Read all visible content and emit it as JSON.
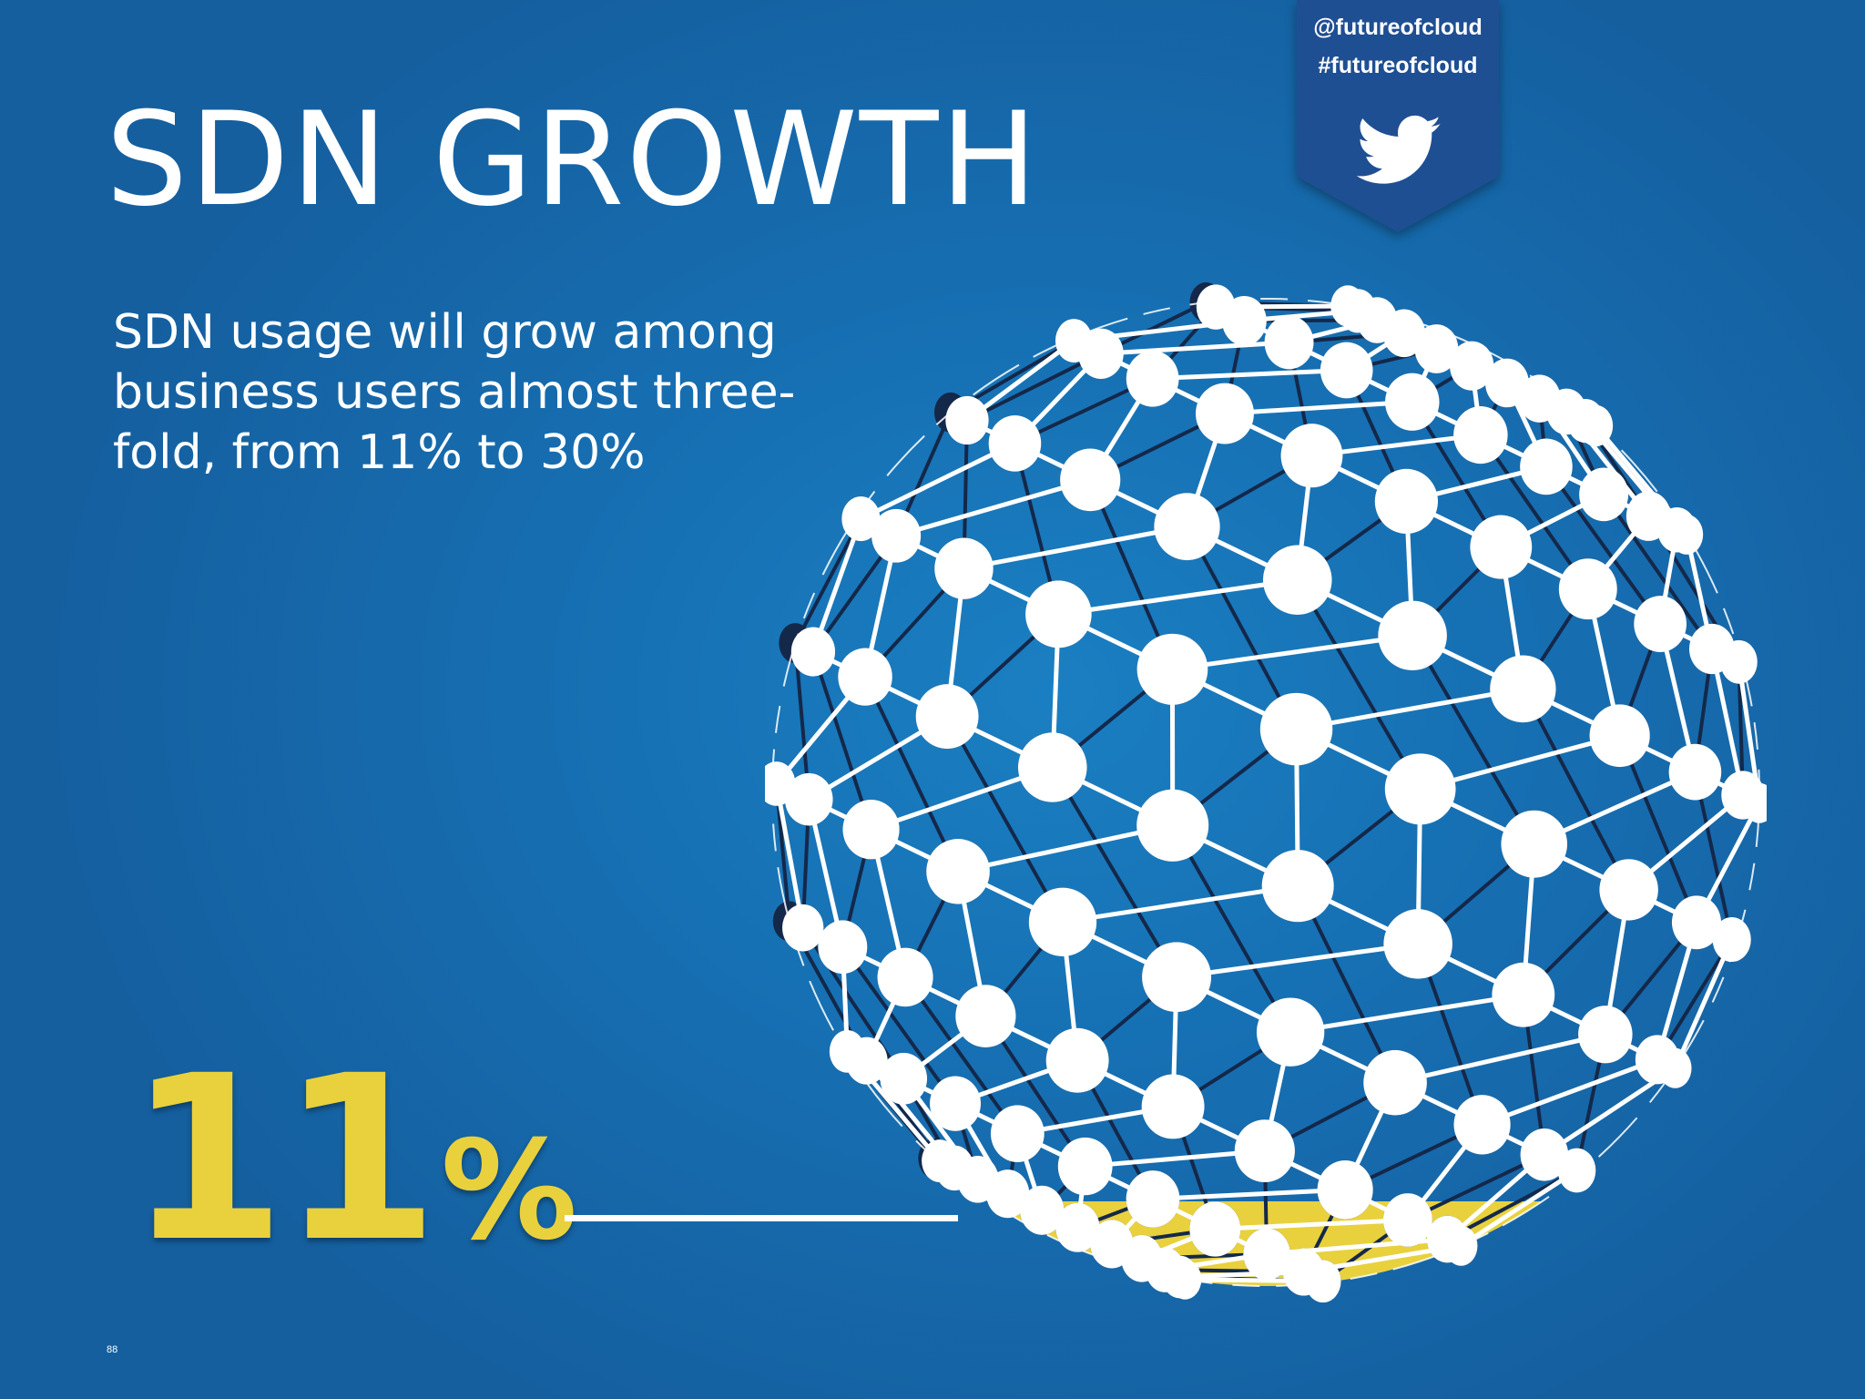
{
  "slide": {
    "title": "SDN GROWTH",
    "subtitle_lines": [
      "SDN usage will grow among",
      "business users almost three-",
      "fold, from 11% to 30%"
    ],
    "stat_value": "11",
    "stat_unit": "%",
    "stat_fill_fraction": 0.11,
    "page_number": "88"
  },
  "social": {
    "handle": "@futureofcloud",
    "hashtag": "#futureofcloud",
    "icon": "twitter-bird-icon"
  },
  "colors": {
    "background": "#1670b3",
    "accent_yellow": "#e8d13d",
    "ribbon": "#1f4f93",
    "node_dark": "#14284a",
    "node_light": "#ffffff"
  }
}
